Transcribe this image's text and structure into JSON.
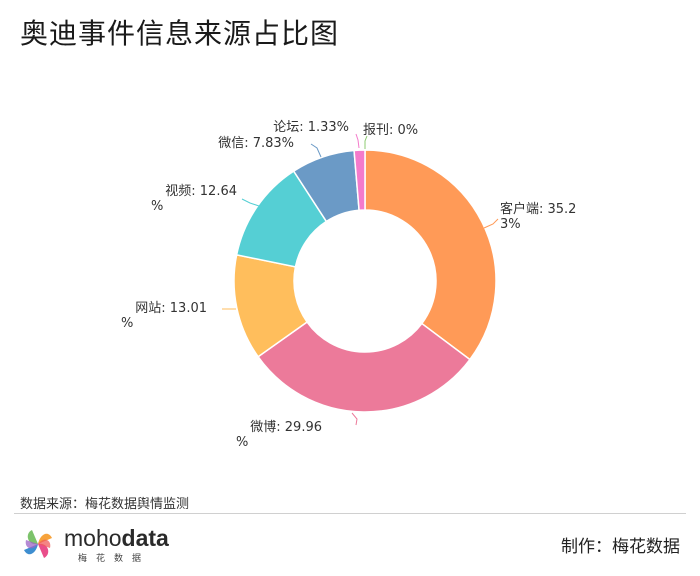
{
  "title": "奥迪事件信息来源占比图",
  "footer": {
    "source": "数据来源：梅花数据舆情监测",
    "maker": "制作：梅花数据",
    "logo_word_a": "moho",
    "logo_word_b": "data",
    "logo_sub": "梅花数据"
  },
  "chart_data": {
    "type": "pie",
    "variant": "donut",
    "title": "奥迪事件信息来源占比图",
    "slices": [
      {
        "name": "客户端",
        "value": 35.23,
        "label_lines": [
          "客户端: 35.2",
          "3%"
        ],
        "color": "#FF9A57"
      },
      {
        "name": "微博",
        "value": 29.96,
        "label_lines": [
          "微博: 29.96",
          "%"
        ],
        "color": "#EC7A9A"
      },
      {
        "name": "网站",
        "value": 13.01,
        "label_lines": [
          "网站: 13.01",
          "%"
        ],
        "color": "#FFBE5C"
      },
      {
        "name": "视频",
        "value": 12.64,
        "label_lines": [
          "视频: 12.64",
          "%"
        ],
        "color": "#55CFD4"
      },
      {
        "name": "微信",
        "value": 7.83,
        "label_lines": [
          "微信: 7.83%"
        ],
        "color": "#6B9AC6"
      },
      {
        "name": "论坛",
        "value": 1.33,
        "label_lines": [
          "论坛: 1.33%"
        ],
        "color": "#F47ACB"
      },
      {
        "name": "报刊",
        "value": 0,
        "label_lines": [
          "报刊: 0%"
        ],
        "color": "#8CCB72"
      }
    ]
  }
}
